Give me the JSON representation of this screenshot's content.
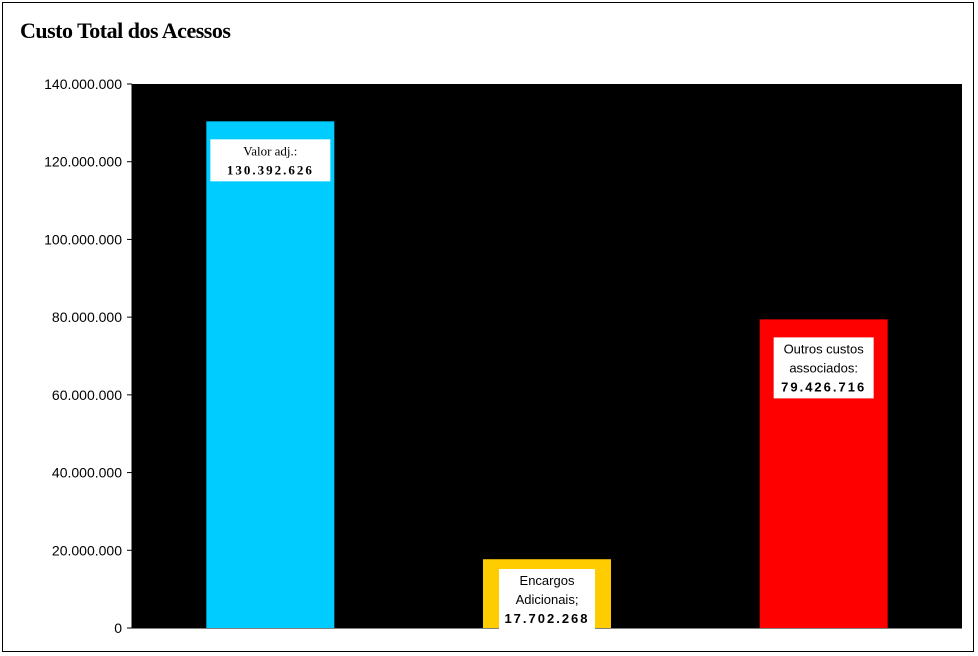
{
  "chart_data": {
    "type": "bar",
    "title": "Custo Total dos Acessos",
    "xlabel": "",
    "ylabel": "",
    "ylim": [
      0,
      140000000
    ],
    "yticks": [
      0,
      20000000,
      40000000,
      60000000,
      80000000,
      100000000,
      120000000,
      140000000
    ],
    "ytick_labels": [
      "0",
      "20.000.000",
      "40.000.000",
      "60.000.000",
      "80.000.000",
      "100.000.000",
      "120.000.000",
      "140.000.000"
    ],
    "plot_background": "#000000",
    "grid": false,
    "legend": "none",
    "bars": [
      {
        "value": 130392626,
        "color": "#00CCFF",
        "label_lines": [
          "Valor adj.:",
          "130.392.626"
        ],
        "label_font": "serif"
      },
      {
        "value": 17702268,
        "color": "#FFCC00",
        "label_lines": [
          "Encargos",
          "Adicionais;",
          "17.702.268"
        ],
        "label_font": "sans"
      },
      {
        "value": 79426716,
        "color": "#FF0000",
        "label_lines": [
          "Outros custos",
          "associados:",
          "79.426.716"
        ],
        "label_font": "sans"
      }
    ]
  }
}
